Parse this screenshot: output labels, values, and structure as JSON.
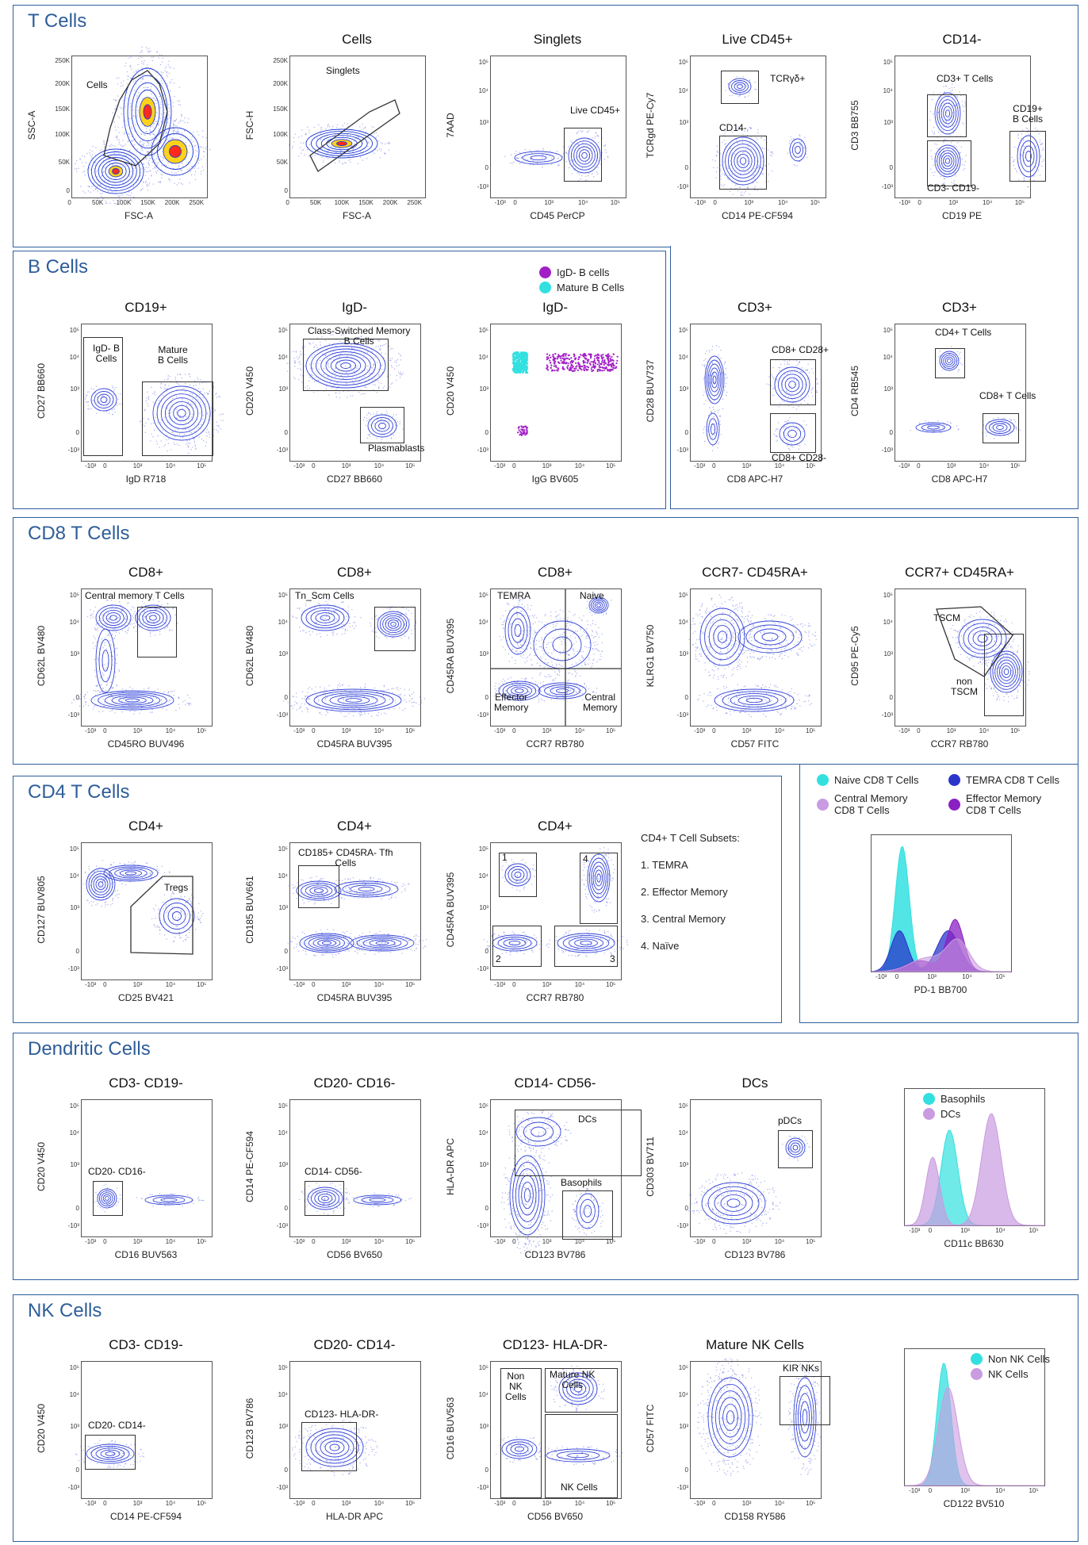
{
  "colors": {
    "accent": "#2e5d99",
    "density": "#3545d8",
    "naive": "#33e0e0",
    "tn_scm": "#33e0e0",
    "temra": "#2a35c9",
    "cm": "#c99be0",
    "em": "#8a1fc2",
    "basophil": "#33e0e0",
    "dc": "#c99be0",
    "nonnk": "#33e0e0",
    "nk": "#c99be0",
    "igd_neg": "#a21fc7",
    "mature_b": "#33e0e0"
  },
  "sections": {
    "t": "T Cells",
    "b": "B Cells",
    "cd8": "CD8 T Cells",
    "cd4": "CD4 T Cells",
    "dc": "Dendritic Cells",
    "nk": "NK Cells"
  },
  "ticks": {
    "log": [
      "10⁵",
      "10⁴",
      "10³",
      "0",
      "-10³"
    ],
    "logx": [
      "-10³",
      "0",
      "10³",
      "10⁴",
      "10⁵"
    ],
    "lin": [
      "250K",
      "200K",
      "150K",
      "100K",
      "50K",
      "0"
    ],
    "linx": [
      "0",
      "50K",
      "100K",
      "150K",
      "200K",
      "250K"
    ]
  },
  "plots": {
    "t1": {
      "title": "",
      "x": "FSC-A",
      "y": "SSC-A",
      "g1": "Cells"
    },
    "t2": {
      "title": "Cells",
      "x": "FSC-A",
      "y": "FSC-H",
      "g1": "Singlets"
    },
    "t3": {
      "title": "Singlets",
      "x": "CD45 PerCP",
      "y": "7AAD",
      "g1": "Live CD45+"
    },
    "t4": {
      "title": "Live CD45+",
      "x": "CD14 PE-CF594",
      "y": "TCRgd PE-Cy7",
      "g1": "TCRγδ+",
      "g2": "CD14-"
    },
    "t5": {
      "title": "CD14-",
      "x": "CD19 PE",
      "y": "CD3 BB755",
      "g1": "CD3+ T Cells",
      "g2": "CD19+\nB Cells",
      "g3": "CD3- CD19-"
    },
    "b1": {
      "title": "CD19+",
      "x": "IgD R718",
      "y": "CD27 BB660",
      "g1": "IgD- B\nCells",
      "g2": "Mature\nB Cells"
    },
    "b2": {
      "title": "IgD-",
      "x": "CD27 BB660",
      "y": "CD20 V450",
      "g1": "Class-Switched Memory\nB Cells",
      "g2": "Plasmablasts"
    },
    "b3": {
      "title": "IgD-",
      "x": "IgG BV605",
      "y": "CD20 V450"
    },
    "t6": {
      "title": "CD3+",
      "x": "CD8 APC-H7",
      "y": "CD28 BUV737",
      "g1": "CD8+ CD28+",
      "g2": "CD8+ CD28-"
    },
    "t7": {
      "title": "CD3+",
      "x": "CD8 APC-H7",
      "y": "CD4 RB545",
      "g1": "CD4+ T Cells",
      "g2": "CD8+ T Cells"
    },
    "c1": {
      "title": "CD8+",
      "x": "CD45RO BUV496",
      "y": "CD62L BV480",
      "g1": "Central memory T Cells"
    },
    "c2": {
      "title": "CD8+",
      "x": "CD45RA BUV395",
      "y": "CD62L BV480",
      "g1": "Tn_Scm Cells"
    },
    "c3": {
      "title": "CD8+",
      "x": "CCR7 RB780",
      "y": "CD45RA BUV395",
      "q1": "TEMRA",
      "q2": "Naive",
      "q3": "Effector\nMemory",
      "q4": "Central\nMemory"
    },
    "c4": {
      "title": "CCR7- CD45RA+",
      "x": "CD57 FITC",
      "y": "KLRG1 BV750"
    },
    "c5": {
      "title": "CCR7+ CD45RA+",
      "x": "CCR7 RB780",
      "y": "CD95 PE-Cy5",
      "g1": "TSCM",
      "g2": "non\nTSCM"
    },
    "d1": {
      "title": "CD4+",
      "x": "CD25 BV421",
      "y": "CD127 BUV805",
      "g1": "Tregs"
    },
    "d2": {
      "title": "CD4+",
      "x": "CD45RA BUV395",
      "y": "CD185 BUV661",
      "g1": "CD185+ CD45RA- Tfh\nCells"
    },
    "d3": {
      "title": "CD4+",
      "x": "CCR7 RB780",
      "y": "CD45RA BUV395",
      "g1": "1",
      "g2": "2",
      "g3": "3",
      "g4": "4"
    },
    "pd1": {
      "x": "PD-1 BB700"
    },
    "e1": {
      "title": "CD3- CD19-",
      "x": "CD16 BUV563",
      "y": "CD20 V450",
      "g1": "CD20- CD16-"
    },
    "e2": {
      "title": "CD20- CD16-",
      "x": "CD56 BV650",
      "y": "CD14 PE-CF594",
      "g1": "CD14- CD56-"
    },
    "e3": {
      "title": "CD14- CD56-",
      "x": "CD123 BV786",
      "y": "HLA-DR APC",
      "g1": "DCs",
      "g2": "Basophils"
    },
    "e4": {
      "title": "DCs",
      "x": "CD123 BV786",
      "y": "CD303 BV711",
      "g1": "pDCs"
    },
    "e5": {
      "x": "CD11c BB630"
    },
    "n1": {
      "title": "CD3- CD19-",
      "x": "CD14 PE-CF594",
      "y": "CD20 V450",
      "g1": "CD20- CD14-"
    },
    "n2": {
      "title": "CD20- CD14-",
      "x": "HLA-DR APC",
      "y": "CD123 BV786",
      "g1": "CD123- HLA-DR-"
    },
    "n3": {
      "title": "CD123- HLA-DR-",
      "x": "CD56 BV650",
      "y": "CD16 BUV563",
      "g1": "Non\nNK\nCells",
      "g2": "Mature NK\nCells",
      "g3": "NK Cells"
    },
    "n4": {
      "title": "Mature NK Cells",
      "x": "CD158 RY586",
      "y": "CD57 FITC",
      "g1": "KIR NKs"
    },
    "n5": {
      "x": "CD122 BV510"
    }
  },
  "legends": {
    "b": [
      "IgD- B cells",
      "Mature B Cells"
    ],
    "cd8": [
      "Naive CD8 T Cells",
      "TEMRA CD8 T Cells",
      "Central Memory\nCD8 T Cells",
      "Effector Memory\nCD8 T Cells"
    ],
    "dc": [
      "Basophils",
      "DCs"
    ],
    "nk": [
      "Non NK Cells",
      "NK Cells"
    ]
  },
  "cd4_subsets": {
    "title": "CD4+ T Cell Subsets:",
    "items": [
      "1. TEMRA",
      "2. Effector Memory",
      "3. Central Memory",
      "4. Naïve"
    ]
  }
}
